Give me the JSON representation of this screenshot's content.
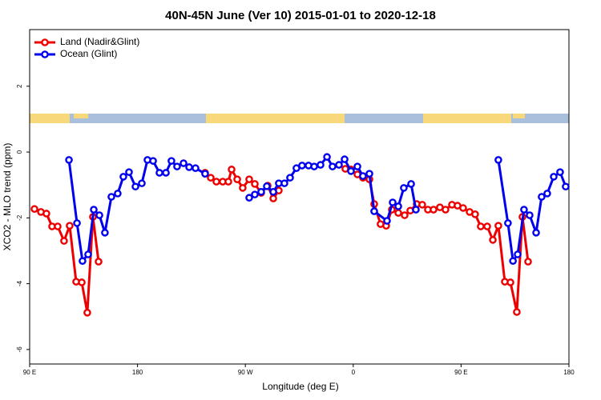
{
  "chart_data": {
    "type": "line",
    "title": "40N-45N June (Ver 10)   2015-01-01 to 2020-12-18",
    "x_label": "Longitude (deg E)",
    "y_label": "XCO2 - MLO trend (ppm)",
    "xlim": [
      90,
      540
    ],
    "xticks": [
      {
        "value": 90,
        "label": "90 E"
      },
      180,
      {
        "value": 270,
        "label": "90 W"
      },
      {
        "value": 360,
        "label": "0"
      },
      {
        "value": 450,
        "label": "90 E"
      },
      {
        "value": 540,
        "label": "180"
      }
    ],
    "ylim": [
      -6.44,
      3.72
    ],
    "yticks": [
      -6,
      -4,
      -2,
      0,
      2
    ],
    "legend": "upper left",
    "series": [
      {
        "name": "Land (Nadir&Glint)",
        "color": "#ee0000",
        "x": [
          94.0,
          99.4,
          104.0,
          108.7,
          113.4,
          118.7,
          123.4,
          128.8,
          133.5,
          138.1,
          142.8,
          147.5,
          null,
          236.4,
          241.1,
          245.8,
          251.1,
          255.8,
          258.5,
          263.2,
          267.8,
          273.2,
          277.9,
          283.2,
          288.6,
          293.3,
          297.9,
          null,
          353.4,
          358.1,
          363.5,
          368.1,
          373.5,
          377.5,
          382.8,
          387.5,
          392.2,
          397.6,
          402.9,
          407.6,
          413.0,
          417.6,
          422.3,
          427.0,
          432.3,
          437.0,
          442.4,
          447.0,
          451.7,
          457.1,
          461.7,
          466.4,
          471.8,
          476.5,
          481.1,
          486.5,
          491.2,
          496.5,
          501.2,
          505.9
        ],
        "values": [
          -1.73,
          -1.82,
          -1.87,
          -2.26,
          -2.26,
          -2.7,
          -2.24,
          -3.94,
          -3.96,
          -4.88,
          -1.97,
          -3.33,
          null,
          -0.63,
          -0.78,
          -0.9,
          -0.9,
          -0.9,
          -0.53,
          -0.83,
          -1.09,
          -0.83,
          -0.97,
          -1.24,
          -1.02,
          -1.41,
          -1.17,
          null,
          -0.51,
          -0.53,
          -0.68,
          -0.78,
          -0.83,
          -1.58,
          -2.19,
          -2.24,
          -1.75,
          -1.85,
          -1.92,
          -1.78,
          -1.58,
          -1.6,
          -1.75,
          -1.75,
          -1.68,
          -1.75,
          -1.6,
          -1.63,
          -1.7,
          -1.82,
          -1.89,
          -2.26,
          -2.26,
          -2.67,
          -2.24,
          -3.94,
          -3.96,
          -4.86,
          -1.97,
          -3.33
        ]
      },
      {
        "name": "Ocean (Glint)",
        "color": "#0000ee",
        "x": [
          122.8,
          129.5,
          134.1,
          138.8,
          143.5,
          148.2,
          152.8,
          158.2,
          163.5,
          168.2,
          172.9,
          178.3,
          183.6,
          188.3,
          193.0,
          198.3,
          203.7,
          208.3,
          213.0,
          218.4,
          223.1,
          228.4,
          236.4,
          null,
          273.2,
          277.9,
          283.2,
          287.9,
          293.3,
          297.9,
          302.6,
          307.3,
          312.6,
          317.3,
          322.7,
          327.4,
          332.7,
          338.1,
          342.7,
          348.1,
          352.8,
          358.1,
          363.5,
          368.1,
          373.5,
          377.5,
          388.2,
          392.9,
          397.6,
          402.2,
          408.3,
          412.3,
          null,
          481.1,
          489.1,
          493.3,
          497.2,
          502.5,
          507.2,
          512.6,
          517.2,
          521.9,
          527.3,
          532.6,
          537.3
        ],
        "values": [
          -0.24,
          -2.16,
          -3.31,
          -3.11,
          -1.75,
          -1.92,
          -2.45,
          -1.36,
          -1.26,
          -0.75,
          -0.61,
          -1.05,
          -0.95,
          -0.24,
          -0.27,
          -0.63,
          -0.63,
          -0.27,
          -0.44,
          -0.34,
          -0.46,
          -0.49,
          -0.66,
          null,
          -1.39,
          -1.29,
          -1.21,
          -1.04,
          -1.21,
          -0.95,
          -0.95,
          -0.78,
          -0.49,
          -0.41,
          -0.41,
          -0.44,
          -0.39,
          -0.15,
          -0.44,
          -0.39,
          -0.22,
          -0.58,
          -0.44,
          -0.73,
          -0.66,
          -1.8,
          -2.09,
          -1.53,
          -1.65,
          -1.09,
          -0.97,
          -1.75,
          null,
          -0.24,
          -2.16,
          -3.31,
          -3.11,
          -1.75,
          -1.92,
          -2.45,
          -1.36,
          -1.26,
          -0.75,
          -0.61,
          -1.05
        ]
      }
    ]
  }
}
